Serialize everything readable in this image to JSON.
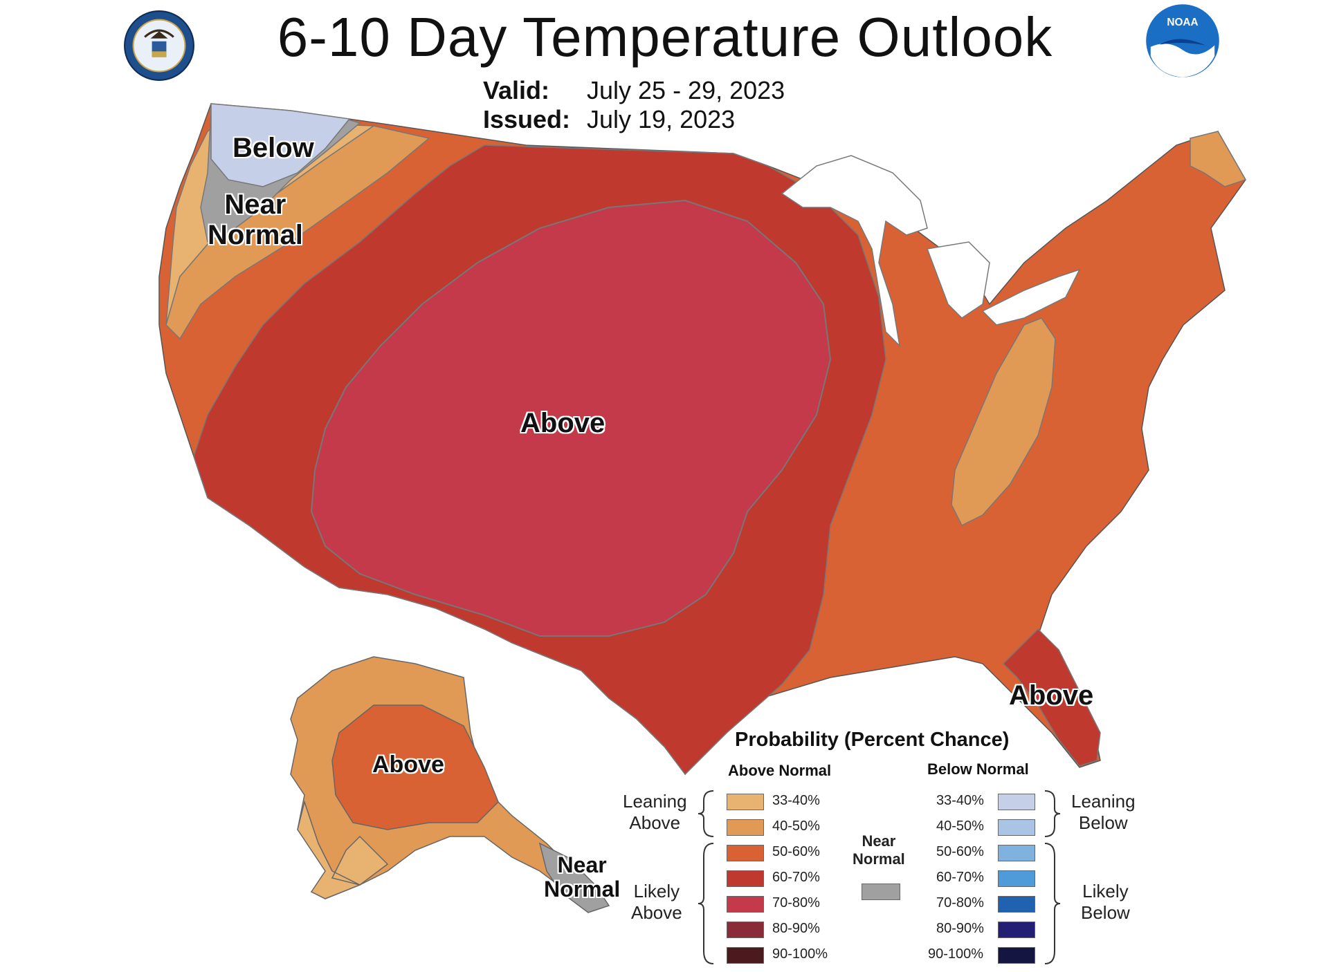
{
  "header": {
    "title": "6-10 Day Temperature Outlook",
    "valid_label": "Valid:",
    "valid_value": "July 25 - 29, 2023",
    "issued_label": "Issued:",
    "issued_value": "July 19, 2023"
  },
  "logos": {
    "left": "department-of-commerce-seal",
    "right": "noaa-logo",
    "noaa_text": "NOAA"
  },
  "map_labels": {
    "below": "Below",
    "near_normal_nw_1": "Near",
    "near_normal_nw_2": "Normal",
    "above_central": "Above",
    "above_florida": "Above",
    "above_alaska": "Above",
    "near_normal_ak_1": "Near",
    "near_normal_ak_2": "Normal"
  },
  "colors": {
    "above_33_40": "#e8b271",
    "above_40_50": "#e09a55",
    "above_50_60": "#d96234",
    "above_60_70": "#c0392f",
    "above_70_80": "#c43a4a",
    "above_80_90": "#8a2c37",
    "above_90_100": "#4a1a1e",
    "near_normal": "#a0a0a0",
    "below_33_40": "#c5cfe8",
    "below_40_50": "#a9c4e4",
    "below_50_60": "#80b2e0",
    "below_60_70": "#4f9ad8",
    "below_70_80": "#2062b0",
    "below_80_90": "#231f74",
    "below_90_100": "#141540"
  },
  "legend": {
    "title": "Probability (Percent Chance)",
    "above_header": "Above Normal",
    "below_header": "Below Normal",
    "near_normal_1": "Near",
    "near_normal_2": "Normal",
    "leaning_above_1": "Leaning",
    "leaning_above_2": "Above",
    "likely_above_1": "Likely",
    "likely_above_2": "Above",
    "leaning_below_1": "Leaning",
    "leaning_below_2": "Below",
    "likely_below_1": "Likely",
    "likely_below_2": "Below",
    "ranges": [
      "33-40%",
      "40-50%",
      "50-60%",
      "60-70%",
      "70-80%",
      "80-90%",
      "90-100%"
    ]
  }
}
